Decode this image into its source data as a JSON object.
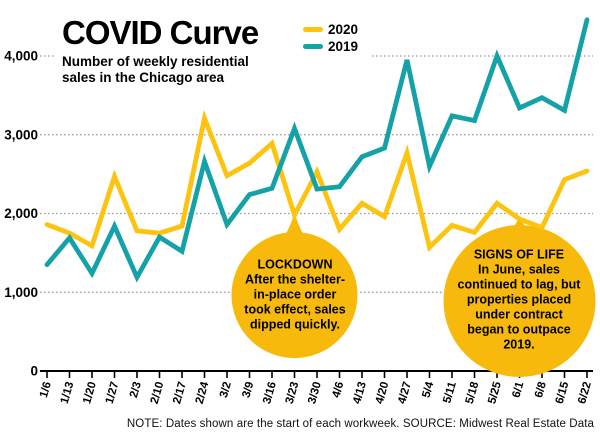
{
  "header": {
    "title": "COVID Curve",
    "subtitle": "Number of weekly residential sales in the Chicago area"
  },
  "footer": {
    "note": "NOTE: Dates shown are the start of each workweek. SOURCE: Midwest Real Estate Data"
  },
  "chart_data": {
    "type": "line",
    "title": "COVID Curve",
    "subtitle": "Number of weekly residential sales in the Chicago area",
    "categories": [
      "1/6",
      "1/13",
      "1/20",
      "1/27",
      "2/3",
      "2/10",
      "2/17",
      "2/24",
      "3/2",
      "3/9",
      "3/16",
      "3/23",
      "3/30",
      "4/6",
      "4/13",
      "4/20",
      "4/27",
      "5/4",
      "5/11",
      "5/18",
      "5/25",
      "6/1",
      "6/8",
      "6/15",
      "6/22"
    ],
    "series": [
      {
        "name": "2020",
        "color": "#FCC30F",
        "values": [
          1860,
          1750,
          1590,
          2470,
          1780,
          1750,
          1840,
          3210,
          2480,
          2640,
          2890,
          1980,
          2530,
          1800,
          2130,
          1960,
          2770,
          1570,
          1850,
          1760,
          2130,
          1930,
          1820,
          2430,
          2540
        ]
      },
      {
        "name": "2019",
        "color": "#15A1A8",
        "values": [
          1350,
          1690,
          1240,
          1840,
          1190,
          1700,
          1520,
          2660,
          1860,
          2240,
          2320,
          3080,
          2310,
          2340,
          2720,
          2830,
          3950,
          2600,
          3240,
          3180,
          4000,
          3340,
          3470,
          3310,
          4460
        ]
      }
    ],
    "ylim": [
      0,
      4500
    ],
    "yticks": [
      0,
      1000,
      2000,
      3000,
      4000
    ],
    "ytick_labels": [
      "0",
      "1,000",
      "2,000",
      "3,000",
      "4,000"
    ],
    "grid": "horizontal-dotted",
    "legend_position": "top",
    "annotation_fill": "#F7BA0C",
    "annotations": [
      {
        "title": "LOCKDOWN",
        "body": "After the shelter-in-place order took effect, sales dipped quickly.",
        "anchor_series": "2020",
        "anchor_category": "3/23",
        "anchor_index": 11,
        "radius": 63,
        "tip_length": 17
      },
      {
        "title": "SIGNS OF LIFE",
        "body": "In June, sales continued to lag, but properties placed under contract began to outpace 2019.",
        "anchor_series": "2020",
        "anchor_category": "6/1",
        "anchor_index": 21,
        "radius": 76,
        "tip_length": 6
      }
    ],
    "note": "NOTE: Dates shown are the start of each workweek. SOURCE: Midwest Real Estate Data"
  }
}
